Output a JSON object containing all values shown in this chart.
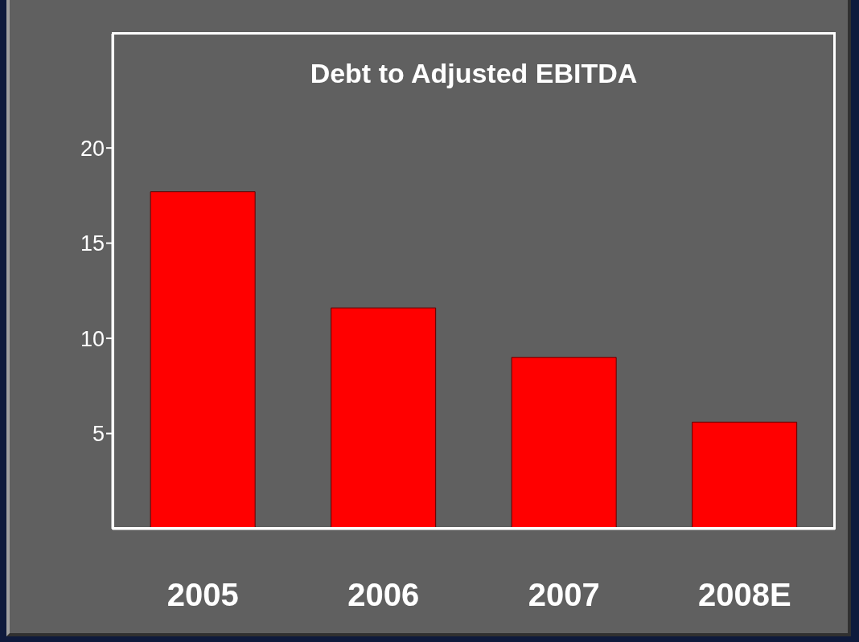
{
  "chart_data": {
    "type": "bar",
    "title": "Debt to Adjusted EBITDA",
    "categories": [
      "2005",
      "2006",
      "2007",
      "2008E"
    ],
    "values": [
      17.7,
      11.6,
      9.0,
      5.6
    ],
    "color": "#ff0000",
    "ylim": [
      0,
      26
    ],
    "yticks": [
      5,
      10,
      15,
      20
    ],
    "grid": false,
    "legend": false
  }
}
